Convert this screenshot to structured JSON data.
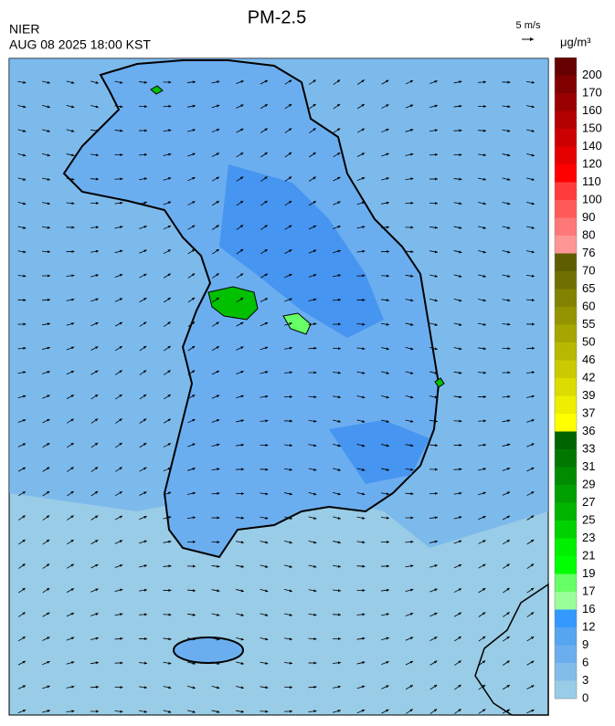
{
  "header": {
    "title": "PM-2.5",
    "agency": "NIER",
    "datetime": "AUG 08 2025 18:00 KST",
    "wind_scale": "5 m/s"
  },
  "colorbar": {
    "unit": "μg/m³",
    "levels": [
      {
        "label": "200",
        "color": "#660000"
      },
      {
        "label": "170",
        "color": "#800000"
      },
      {
        "label": "160",
        "color": "#990000"
      },
      {
        "label": "150",
        "color": "#b30000"
      },
      {
        "label": "140",
        "color": "#cc0000"
      },
      {
        "label": "120",
        "color": "#e60000"
      },
      {
        "label": "110",
        "color": "#ff0000"
      },
      {
        "label": "100",
        "color": "#ff3c3c"
      },
      {
        "label": "90",
        "color": "#ff5a5a"
      },
      {
        "label": "80",
        "color": "#ff7878"
      },
      {
        "label": "76",
        "color": "#ff9696"
      },
      {
        "label": "70",
        "color": "#5e5e00"
      },
      {
        "label": "65",
        "color": "#707000"
      },
      {
        "label": "60",
        "color": "#828200"
      },
      {
        "label": "55",
        "color": "#949400"
      },
      {
        "label": "50",
        "color": "#a6a600"
      },
      {
        "label": "46",
        "color": "#b8b800"
      },
      {
        "label": "42",
        "color": "#caca00"
      },
      {
        "label": "39",
        "color": "#dcdc00"
      },
      {
        "label": "37",
        "color": "#eeee00"
      },
      {
        "label": "36",
        "color": "#ffff00"
      },
      {
        "label": "33",
        "color": "#006400"
      },
      {
        "label": "31",
        "color": "#007800"
      },
      {
        "label": "29",
        "color": "#008c00"
      },
      {
        "label": "27",
        "color": "#00a000"
      },
      {
        "label": "25",
        "color": "#00b400"
      },
      {
        "label": "23",
        "color": "#00d200"
      },
      {
        "label": "21",
        "color": "#00f000"
      },
      {
        "label": "19",
        "color": "#00ff00"
      },
      {
        "label": "17",
        "color": "#66ff66"
      },
      {
        "label": "16",
        "color": "#99ff99"
      },
      {
        "label": "12",
        "color": "#3399ff"
      },
      {
        "label": "9",
        "color": "#55a5f0"
      },
      {
        "label": "6",
        "color": "#6baef0"
      },
      {
        "label": "3",
        "color": "#82bce8"
      },
      {
        "label": "0",
        "color": "#99cce6"
      }
    ]
  }
}
